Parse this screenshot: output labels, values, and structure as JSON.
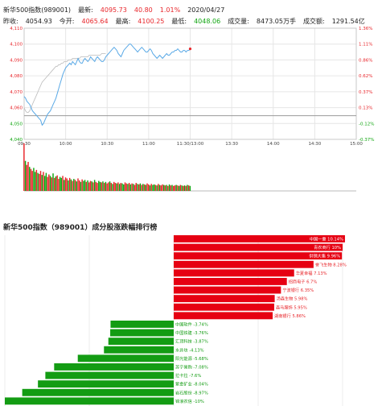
{
  "header": {
    "name": "新华500指数(989001)",
    "latest_label": "最新:",
    "latest": "4095.73",
    "change": "40.80",
    "change_pct": "1.01%",
    "date": "2020/04/27",
    "prev_close_label": "昨收:",
    "prev_close": "4054.93",
    "open_label": "今开:",
    "open": "4065.64",
    "high_label": "最高:",
    "high": "4100.25",
    "low_label": "最低:",
    "low": "4048.06",
    "volume_label": "成交量:",
    "volume": "8473.05万手",
    "amount_label": "成交额:",
    "amount": "1291.54亿"
  },
  "rank_title": "新华500指数（989001）成分股涨跌幅排行榜",
  "colors": {
    "up": "#e8262b",
    "down": "#11a611",
    "price_line": "#5aa9e6",
    "avg_line": "#bbbbbb"
  },
  "chart_data": [
    {
      "type": "line",
      "title": "",
      "x_ticks": [
        "09:30",
        "10:00",
        "10:30",
        "11:00",
        "11:30/13:00",
        "13:30",
        "14:00",
        "14:30",
        "15:00"
      ],
      "y_ticks_left": [
        "4,110",
        "4,100",
        "4,090",
        "4,080",
        "4,070",
        "4,060",
        "4,050",
        "4,040"
      ],
      "y_ticks_right": [
        "1.36%",
        "1.11%",
        "0.86%",
        "0.62%",
        "0.37%",
        "0.13%",
        "-0.12%",
        "-0.37%"
      ],
      "ylim": [
        4040,
        4110
      ],
      "baseline": 4054.93,
      "grid": true,
      "series": [
        {
          "values": [
            4067,
            4066,
            4064,
            4063,
            4062,
            4060,
            4058,
            4057,
            4056,
            4055,
            4054,
            4053,
            4052,
            4049,
            4050,
            4052,
            4054,
            4056,
            4057,
            4058,
            4060,
            4062,
            4064,
            4066,
            4069,
            4072,
            4075,
            4078,
            4081,
            4083,
            4085,
            4086,
            4087,
            4088,
            4087,
            4089,
            4088,
            4087,
            4089,
            4091,
            4089,
            4088,
            4088,
            4090,
            4091,
            4090,
            4089,
            4090,
            4092,
            4091,
            4090,
            4089,
            4091,
            4092,
            4091,
            4090,
            4089,
            4089,
            4090,
            4092,
            4093,
            4094,
            4095,
            4096,
            4097,
            4098,
            4097,
            4096,
            4094,
            4093,
            4092,
            4094,
            4096,
            4097,
            4098,
            4099,
            4100,
            4100,
            4099,
            4098,
            4097,
            4096,
            4095,
            4096,
            4097,
            4098,
            4097,
            4096,
            4095,
            4095,
            4096,
            4097,
            4096,
            4094,
            4093,
            4092,
            4091,
            4092,
            4093,
            4092,
            4091,
            4092,
            4093,
            4094,
            4093,
            4093,
            4094,
            4095,
            4095,
            4096,
            4096,
            4097,
            4096,
            4095,
            4095,
            4096,
            4096,
            4095,
            4096,
            4096,
            4097
          ]
        },
        {
          "values": [
            4060,
            4058,
            4057,
            4057,
            4058,
            4060,
            4062,
            4064,
            4066,
            4068,
            4070,
            4072,
            4074,
            4076,
            4077,
            4078,
            4079,
            4080,
            4081,
            4082,
            4083,
            4084,
            4085,
            4086,
            4086,
            4087,
            4087,
            4088,
            4088,
            4089,
            4089,
            4089,
            4090,
            4090,
            4090,
            4091,
            4091,
            4091,
            4091,
            4091,
            4091,
            4092,
            4092,
            4092,
            4092,
            4092,
            4092,
            4093,
            4093,
            4093,
            4093,
            4093,
            4093,
            4093,
            4093,
            4093,
            4094,
            4094,
            4094,
            4094
          ]
        }
      ],
      "volume": [
        95,
        60,
        52,
        58,
        48,
        44,
        40,
        46,
        38,
        42,
        36,
        34,
        40,
        32,
        38,
        30,
        36,
        28,
        33,
        30,
        27,
        35,
        26,
        29,
        31,
        24,
        28,
        26,
        30,
        22,
        27,
        25,
        21,
        26,
        23,
        20,
        24,
        22,
        19,
        25,
        21,
        18,
        23,
        20,
        22,
        18,
        21,
        17,
        20,
        19,
        17,
        22,
        18,
        16,
        20,
        18,
        17,
        19,
        16,
        18,
        15,
        17,
        19,
        16,
        14,
        18,
        16,
        15,
        17,
        14,
        16,
        15,
        13,
        17,
        15,
        14,
        16,
        13,
        15,
        14,
        12,
        16,
        14,
        13,
        15,
        12,
        14,
        13,
        12,
        15,
        13,
        11,
        14,
        12,
        13,
        12,
        11,
        14,
        12,
        11,
        13,
        12,
        11,
        12,
        10,
        13,
        11,
        12,
        10,
        11,
        12,
        11,
        10,
        12,
        11,
        10,
        11,
        10,
        12,
        11,
        10
      ],
      "volume_colors": "rgrrgrrggrgrrgrggrrgrgrgrrggrgrrgrgrgrgrrgrggrgrrgrgrrggrgrgrrgrgrrgrgrggrrgrgrgrrgrgrgrgrrgrggrgrgrrgrgrgrgrrgrgrgrgrgrgrrg"
    },
    {
      "type": "bar",
      "title": "新华500指数（989001）成分股涨跌幅排行榜",
      "orientation": "horizontal",
      "xlim": [
        -10,
        10
      ],
      "categories": [
        "中国一重",
        "青农商行",
        "供销大集",
        "誉飞生物",
        "华夏幸福",
        "招商电子",
        "宁波银行",
        "汤森生物",
        "森马服饰",
        "湖南银行",
        "中国软件",
        "中国铁建",
        "汇顶科技",
        "水井坊",
        "阳光能源",
        "苏宁易购",
        "拉卡拉",
        "紫金矿业",
        "岩石股份",
        "锦浪农信"
      ],
      "values": [
        10.14,
        10,
        9.96,
        8.28,
        7.13,
        6.7,
        6.35,
        5.98,
        5.95,
        5.86,
        -3.74,
        -3.76,
        -3.87,
        -4.13,
        -5.68,
        -7.08,
        -7.6,
        -8.04,
        -8.97,
        -10
      ],
      "labels": [
        "中国一重 10.14%",
        "青农商行 10%",
        "供销大集 9.96%",
        "誉飞生物 8.28%",
        "华夏幸福 7.13%",
        "招商电子 6.7%",
        "宁波银行 6.35%",
        "汤森生物 5.98%",
        "森马服饰 5.95%",
        "湖南银行 5.86%",
        "中国软件 -3.74%",
        "中国铁建 -3.76%",
        "汇顶科技 -3.87%",
        "水井坊 -4.13%",
        "阳光能源 -5.68%",
        "苏宁易购 -7.08%",
        "拉卡拉 -7.6%",
        "紫金矿业 -8.04%",
        "岩石股份 -8.97%",
        "锦浪农信 -10%"
      ]
    }
  ]
}
